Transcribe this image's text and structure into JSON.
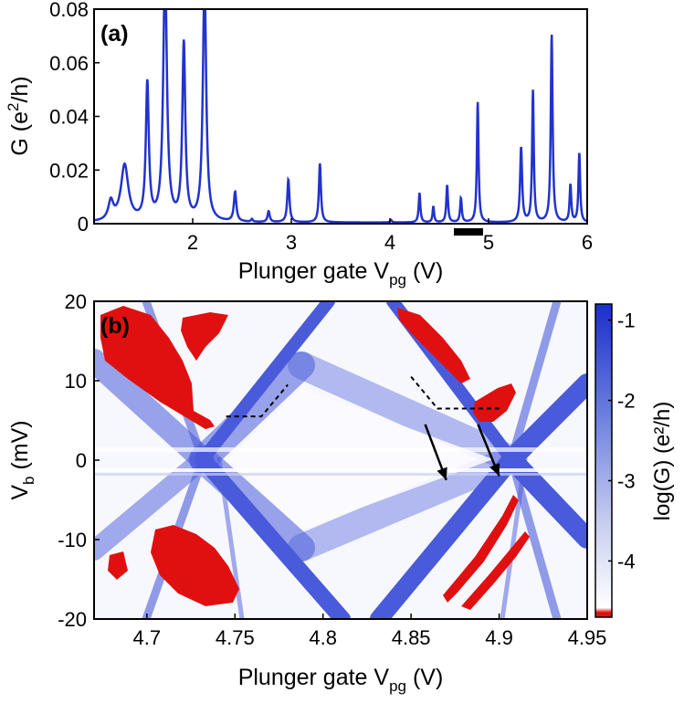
{
  "colors": {
    "trace": "#2233cc",
    "map_blue": "#1a2ecc",
    "map_red": "#e01010",
    "axis": "#000000"
  },
  "panel_a": {
    "tag": "(a)",
    "xlabel_main": "Plunger gate V",
    "xlabel_sub": "pg",
    "xlabel_unit": " (V)",
    "ylabel_main": "G (e",
    "ylabel_sup": "2",
    "ylabel_unit": "/h)"
  },
  "panel_b": {
    "tag": "(b)",
    "xlabel_main": "Plunger gate V",
    "xlabel_sub": "pg",
    "xlabel_unit": " (V)",
    "ylabel_main": "V",
    "ylabel_sub": "b",
    "ylabel_unit": " (mV)",
    "colorbar_label": "log(G) (e²/h)"
  },
  "chart_data": [
    {
      "type": "line",
      "xlim": [
        1.0,
        6.0
      ],
      "ylim": [
        0,
        0.08
      ],
      "x_ticks": [
        2,
        3,
        4,
        5,
        6
      ],
      "x_tick_labels": [
        "2",
        "3",
        "4",
        "5",
        "6"
      ],
      "y_ticks": [
        0,
        0.02,
        0.04,
        0.06,
        0.08
      ],
      "y_tick_labels": [
        "0",
        "0.02",
        "0.04",
        "0.06",
        "0.08"
      ],
      "grid": false,
      "highlight_range_x": [
        4.65,
        4.95
      ],
      "peaks": [
        {
          "x": 1.17,
          "g": 0.007,
          "w": 0.03
        },
        {
          "x": 1.31,
          "g": 0.021,
          "w": 0.045
        },
        {
          "x": 1.54,
          "g": 0.051,
          "w": 0.018
        },
        {
          "x": 1.72,
          "g": 0.095,
          "w": 0.022
        },
        {
          "x": 1.91,
          "g": 0.066,
          "w": 0.018
        },
        {
          "x": 2.12,
          "g": 0.09,
          "w": 0.02
        },
        {
          "x": 2.43,
          "g": 0.011,
          "w": 0.015
        },
        {
          "x": 2.6,
          "g": 0.001,
          "w": 0.01
        },
        {
          "x": 2.77,
          "g": 0.004,
          "w": 0.013
        },
        {
          "x": 2.97,
          "g": 0.016,
          "w": 0.013
        },
        {
          "x": 3.29,
          "g": 0.022,
          "w": 0.012
        },
        {
          "x": 4.01,
          "g": 0.001,
          "w": 0.01
        },
        {
          "x": 4.3,
          "g": 0.011,
          "w": 0.01
        },
        {
          "x": 4.44,
          "g": 0.006,
          "w": 0.009
        },
        {
          "x": 4.58,
          "g": 0.014,
          "w": 0.01
        },
        {
          "x": 4.72,
          "g": 0.009,
          "w": 0.01
        },
        {
          "x": 4.89,
          "g": 0.045,
          "w": 0.01
        },
        {
          "x": 5.33,
          "g": 0.028,
          "w": 0.012
        },
        {
          "x": 5.45,
          "g": 0.049,
          "w": 0.01
        },
        {
          "x": 5.64,
          "g": 0.07,
          "w": 0.011
        },
        {
          "x": 5.83,
          "g": 0.014,
          "w": 0.01
        },
        {
          "x": 5.92,
          "g": 0.026,
          "w": 0.01
        }
      ]
    },
    {
      "type": "heatmap",
      "xlim": [
        4.67,
        4.95
      ],
      "ylim": [
        -20,
        20
      ],
      "x_ticks": [
        4.7,
        4.75,
        4.8,
        4.85,
        4.9,
        4.95
      ],
      "x_tick_labels": [
        "4.7",
        "4.75",
        "4.8",
        "4.85",
        "4.9",
        "4.95"
      ],
      "y_ticks": [
        -20,
        -10,
        0,
        10,
        20
      ],
      "y_tick_labels": [
        "-20",
        "-10",
        "0",
        "10",
        "20"
      ],
      "colorbar": {
        "range": [
          -4.7,
          -0.8
        ],
        "ticks": [
          -1,
          -2,
          -3,
          -4
        ],
        "tick_labels": [
          "-1",
          "-2",
          "-3",
          "-4"
        ]
      },
      "crossing_points_vpg": [
        4.73,
        4.905
      ],
      "dashed_guides": [
        [
          [
            4.745,
            5.5
          ],
          [
            4.765,
            5.5
          ],
          [
            4.78,
            9.5
          ]
        ],
        [
          [
            4.85,
            10.5
          ],
          [
            4.865,
            6.5
          ],
          [
            4.9,
            6.5
          ]
        ]
      ],
      "arrows": [
        {
          "from": [
            4.858,
            4.5
          ],
          "to": [
            4.87,
            -2.5
          ]
        },
        {
          "from": [
            4.888,
            4.5
          ],
          "to": [
            4.9,
            -2.0
          ]
        }
      ]
    }
  ]
}
